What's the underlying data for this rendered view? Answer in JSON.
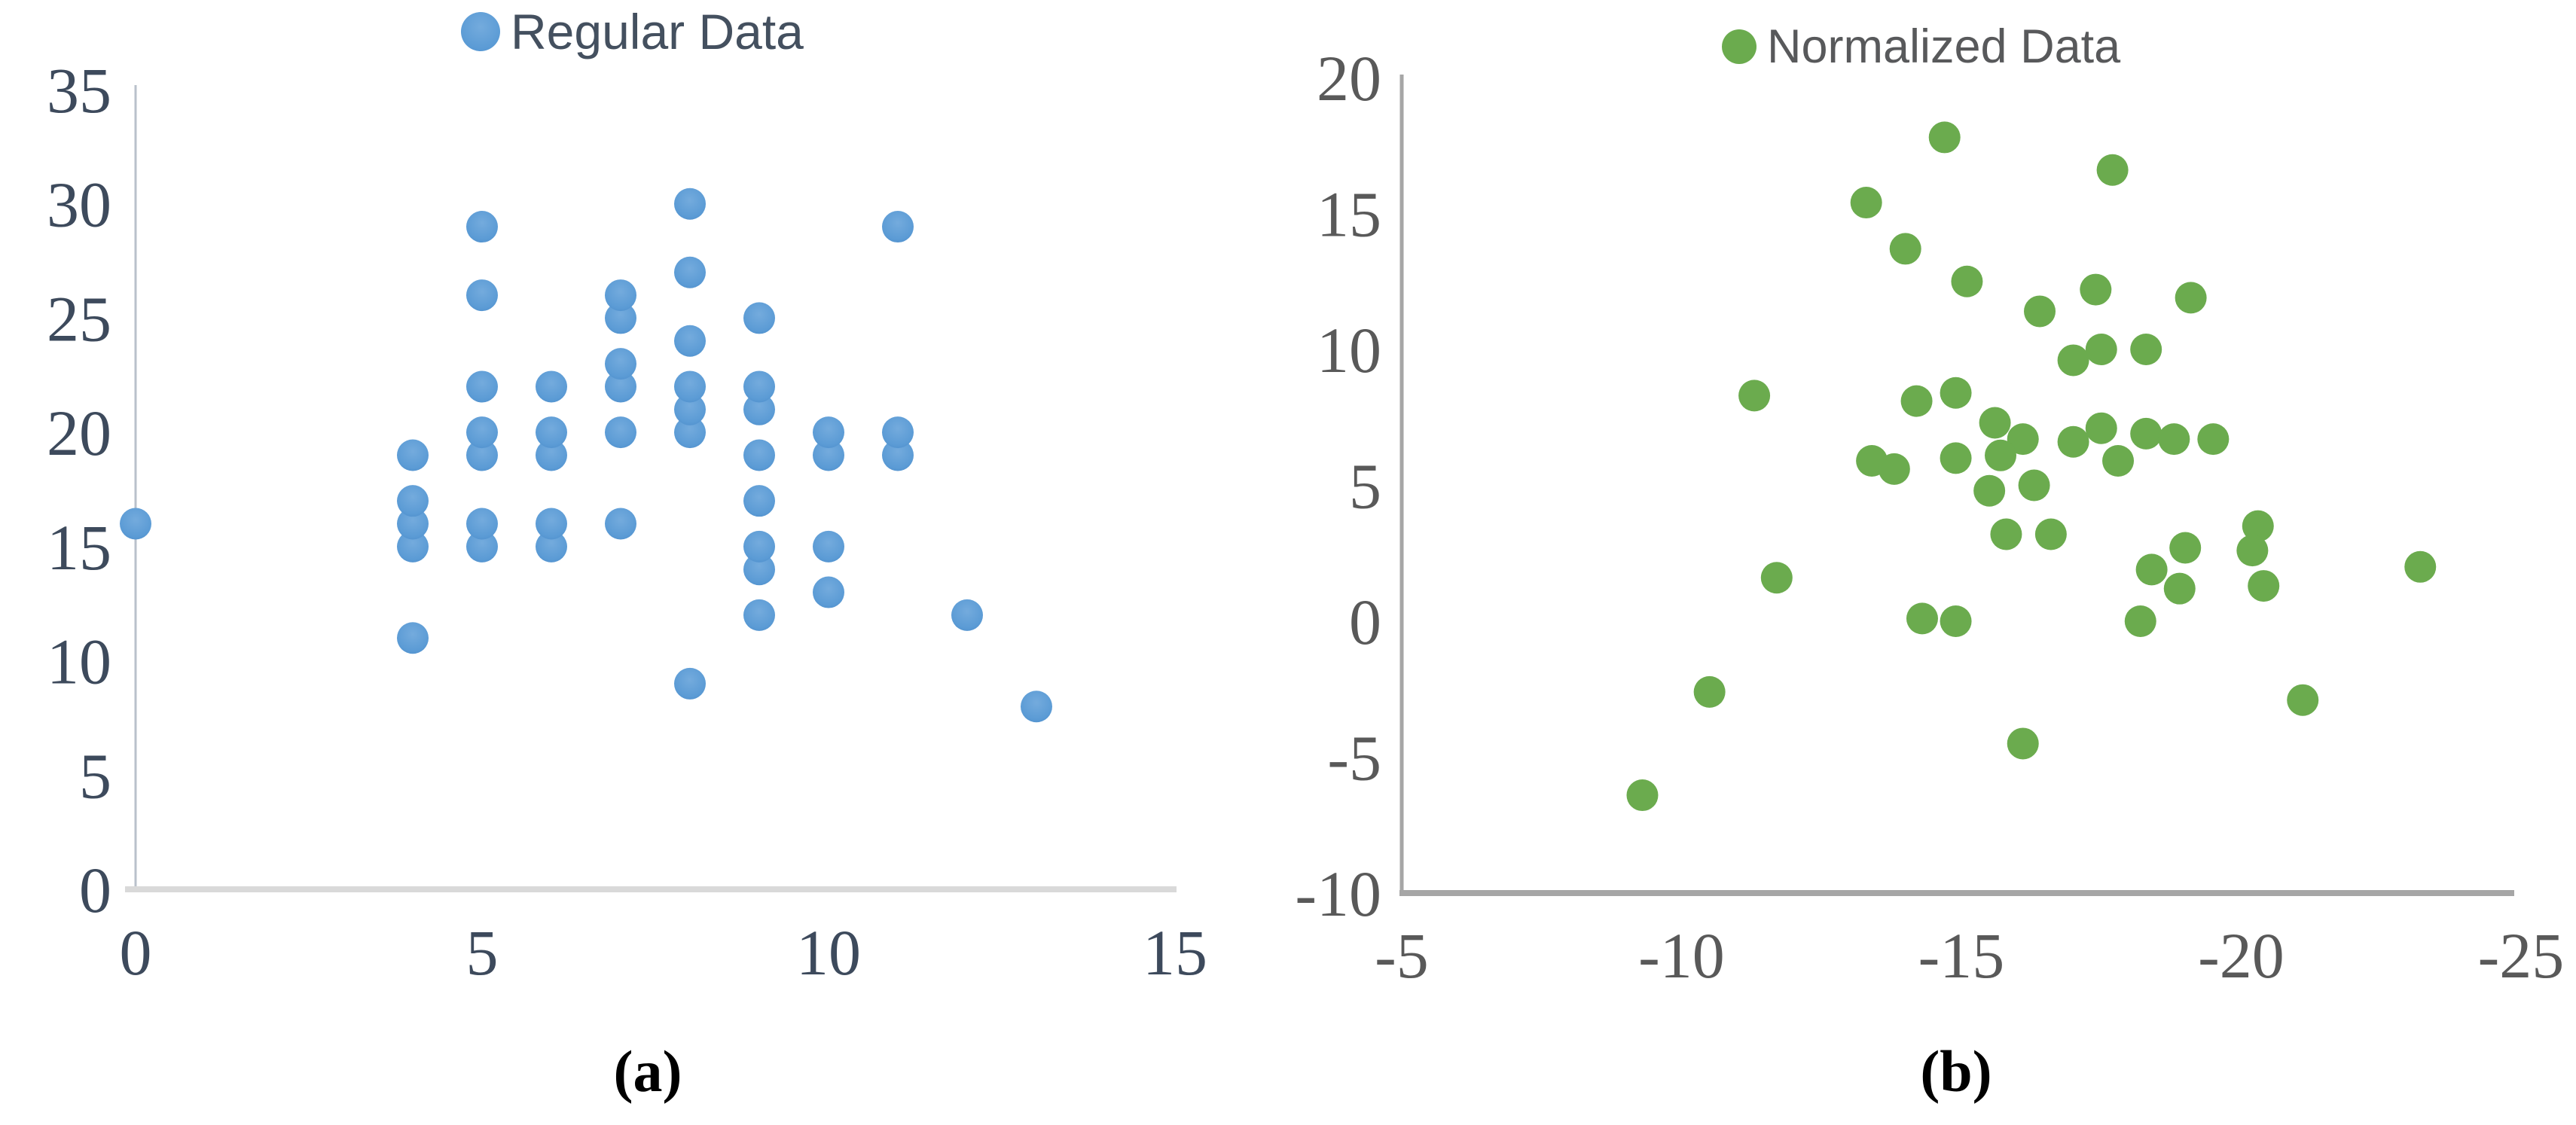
{
  "figure": {
    "panels": [
      {
        "id": "a",
        "caption": "(a)",
        "legend_label": "Regular Data"
      },
      {
        "id": "b",
        "caption": "(b)",
        "legend_label": "Normalized Data"
      }
    ]
  },
  "chart_data": [
    {
      "type": "scatter",
      "legend": "Regular Data",
      "marker_color": "#5b9bd5",
      "xlim": [
        0,
        15
      ],
      "ylim": [
        0,
        35
      ],
      "xticks": [
        0,
        5,
        10,
        15
      ],
      "yticks": [
        0,
        5,
        10,
        15,
        20,
        25,
        30,
        35
      ],
      "grid": false,
      "legend_position": "top-center",
      "points": [
        [
          0,
          16
        ],
        [
          4,
          11
        ],
        [
          4,
          15
        ],
        [
          4,
          16
        ],
        [
          4,
          17
        ],
        [
          4,
          19
        ],
        [
          5,
          15
        ],
        [
          5,
          16
        ],
        [
          5,
          19
        ],
        [
          5,
          20
        ],
        [
          5,
          22
        ],
        [
          5,
          26
        ],
        [
          5,
          29
        ],
        [
          6,
          15
        ],
        [
          6,
          16
        ],
        [
          6,
          19
        ],
        [
          6,
          20
        ],
        [
          6,
          22
        ],
        [
          7,
          16
        ],
        [
          7,
          20
        ],
        [
          7,
          22
        ],
        [
          7,
          23
        ],
        [
          7,
          25
        ],
        [
          7,
          26
        ],
        [
          8,
          9
        ],
        [
          8,
          20
        ],
        [
          8,
          21
        ],
        [
          8,
          22
        ],
        [
          8,
          24
        ],
        [
          8,
          27
        ],
        [
          8,
          30
        ],
        [
          9,
          12
        ],
        [
          9,
          14
        ],
        [
          9,
          15
        ],
        [
          9,
          17
        ],
        [
          9,
          19
        ],
        [
          9,
          21
        ],
        [
          9,
          22
        ],
        [
          9,
          25
        ],
        [
          10,
          13
        ],
        [
          10,
          15
        ],
        [
          10,
          19
        ],
        [
          10,
          20
        ],
        [
          11,
          19
        ],
        [
          11,
          20
        ],
        [
          11,
          29
        ],
        [
          12,
          12
        ],
        [
          13,
          8
        ]
      ]
    },
    {
      "type": "scatter",
      "legend": "Normalized Data",
      "marker_color": "#6bab4e",
      "xlim": [
        -5,
        -25
      ],
      "ylim": [
        -10,
        20
      ],
      "xticks": [
        -5,
        -10,
        -15,
        -20,
        -25
      ],
      "yticks": [
        20,
        15,
        10,
        5,
        0,
        -5,
        -10
      ],
      "grid": false,
      "legend_position": "top-center",
      "points": [
        [
          -14.7,
          17.8
        ],
        [
          -17.7,
          16.6
        ],
        [
          -13.3,
          15.4
        ],
        [
          -14.0,
          13.7
        ],
        [
          -15.1,
          12.5
        ],
        [
          -17.4,
          12.2
        ],
        [
          -19.1,
          11.9
        ],
        [
          -16.4,
          11.4
        ],
        [
          -17.5,
          10.0
        ],
        [
          -18.3,
          10.0
        ],
        [
          -17.0,
          9.6
        ],
        [
          -11.3,
          8.3
        ],
        [
          -14.9,
          8.4
        ],
        [
          -14.2,
          8.1
        ],
        [
          -15.6,
          7.3
        ],
        [
          -17.5,
          7.1
        ],
        [
          -18.3,
          6.9
        ],
        [
          -18.8,
          6.7
        ],
        [
          -19.5,
          6.7
        ],
        [
          -17.0,
          6.6
        ],
        [
          -16.1,
          6.7
        ],
        [
          -13.4,
          5.9
        ],
        [
          -13.8,
          5.6
        ],
        [
          -15.7,
          6.1
        ],
        [
          -14.9,
          6.0
        ],
        [
          -17.8,
          5.9
        ],
        [
          -16.3,
          5.0
        ],
        [
          -15.5,
          4.8
        ],
        [
          -20.3,
          3.5
        ],
        [
          -15.8,
          3.2
        ],
        [
          -16.6,
          3.2
        ],
        [
          -19.0,
          2.7
        ],
        [
          -20.2,
          2.6
        ],
        [
          -23.2,
          2.0
        ],
        [
          -18.4,
          1.9
        ],
        [
          -11.7,
          1.6
        ],
        [
          -20.4,
          1.3
        ],
        [
          -18.9,
          1.2
        ],
        [
          -14.3,
          0.1
        ],
        [
          -14.9,
          0.0
        ],
        [
          -18.2,
          0.0
        ],
        [
          -10.5,
          -2.6
        ],
        [
          -21.1,
          -2.9
        ],
        [
          -16.1,
          -4.5
        ],
        [
          -9.3,
          -6.4
        ]
      ]
    }
  ]
}
